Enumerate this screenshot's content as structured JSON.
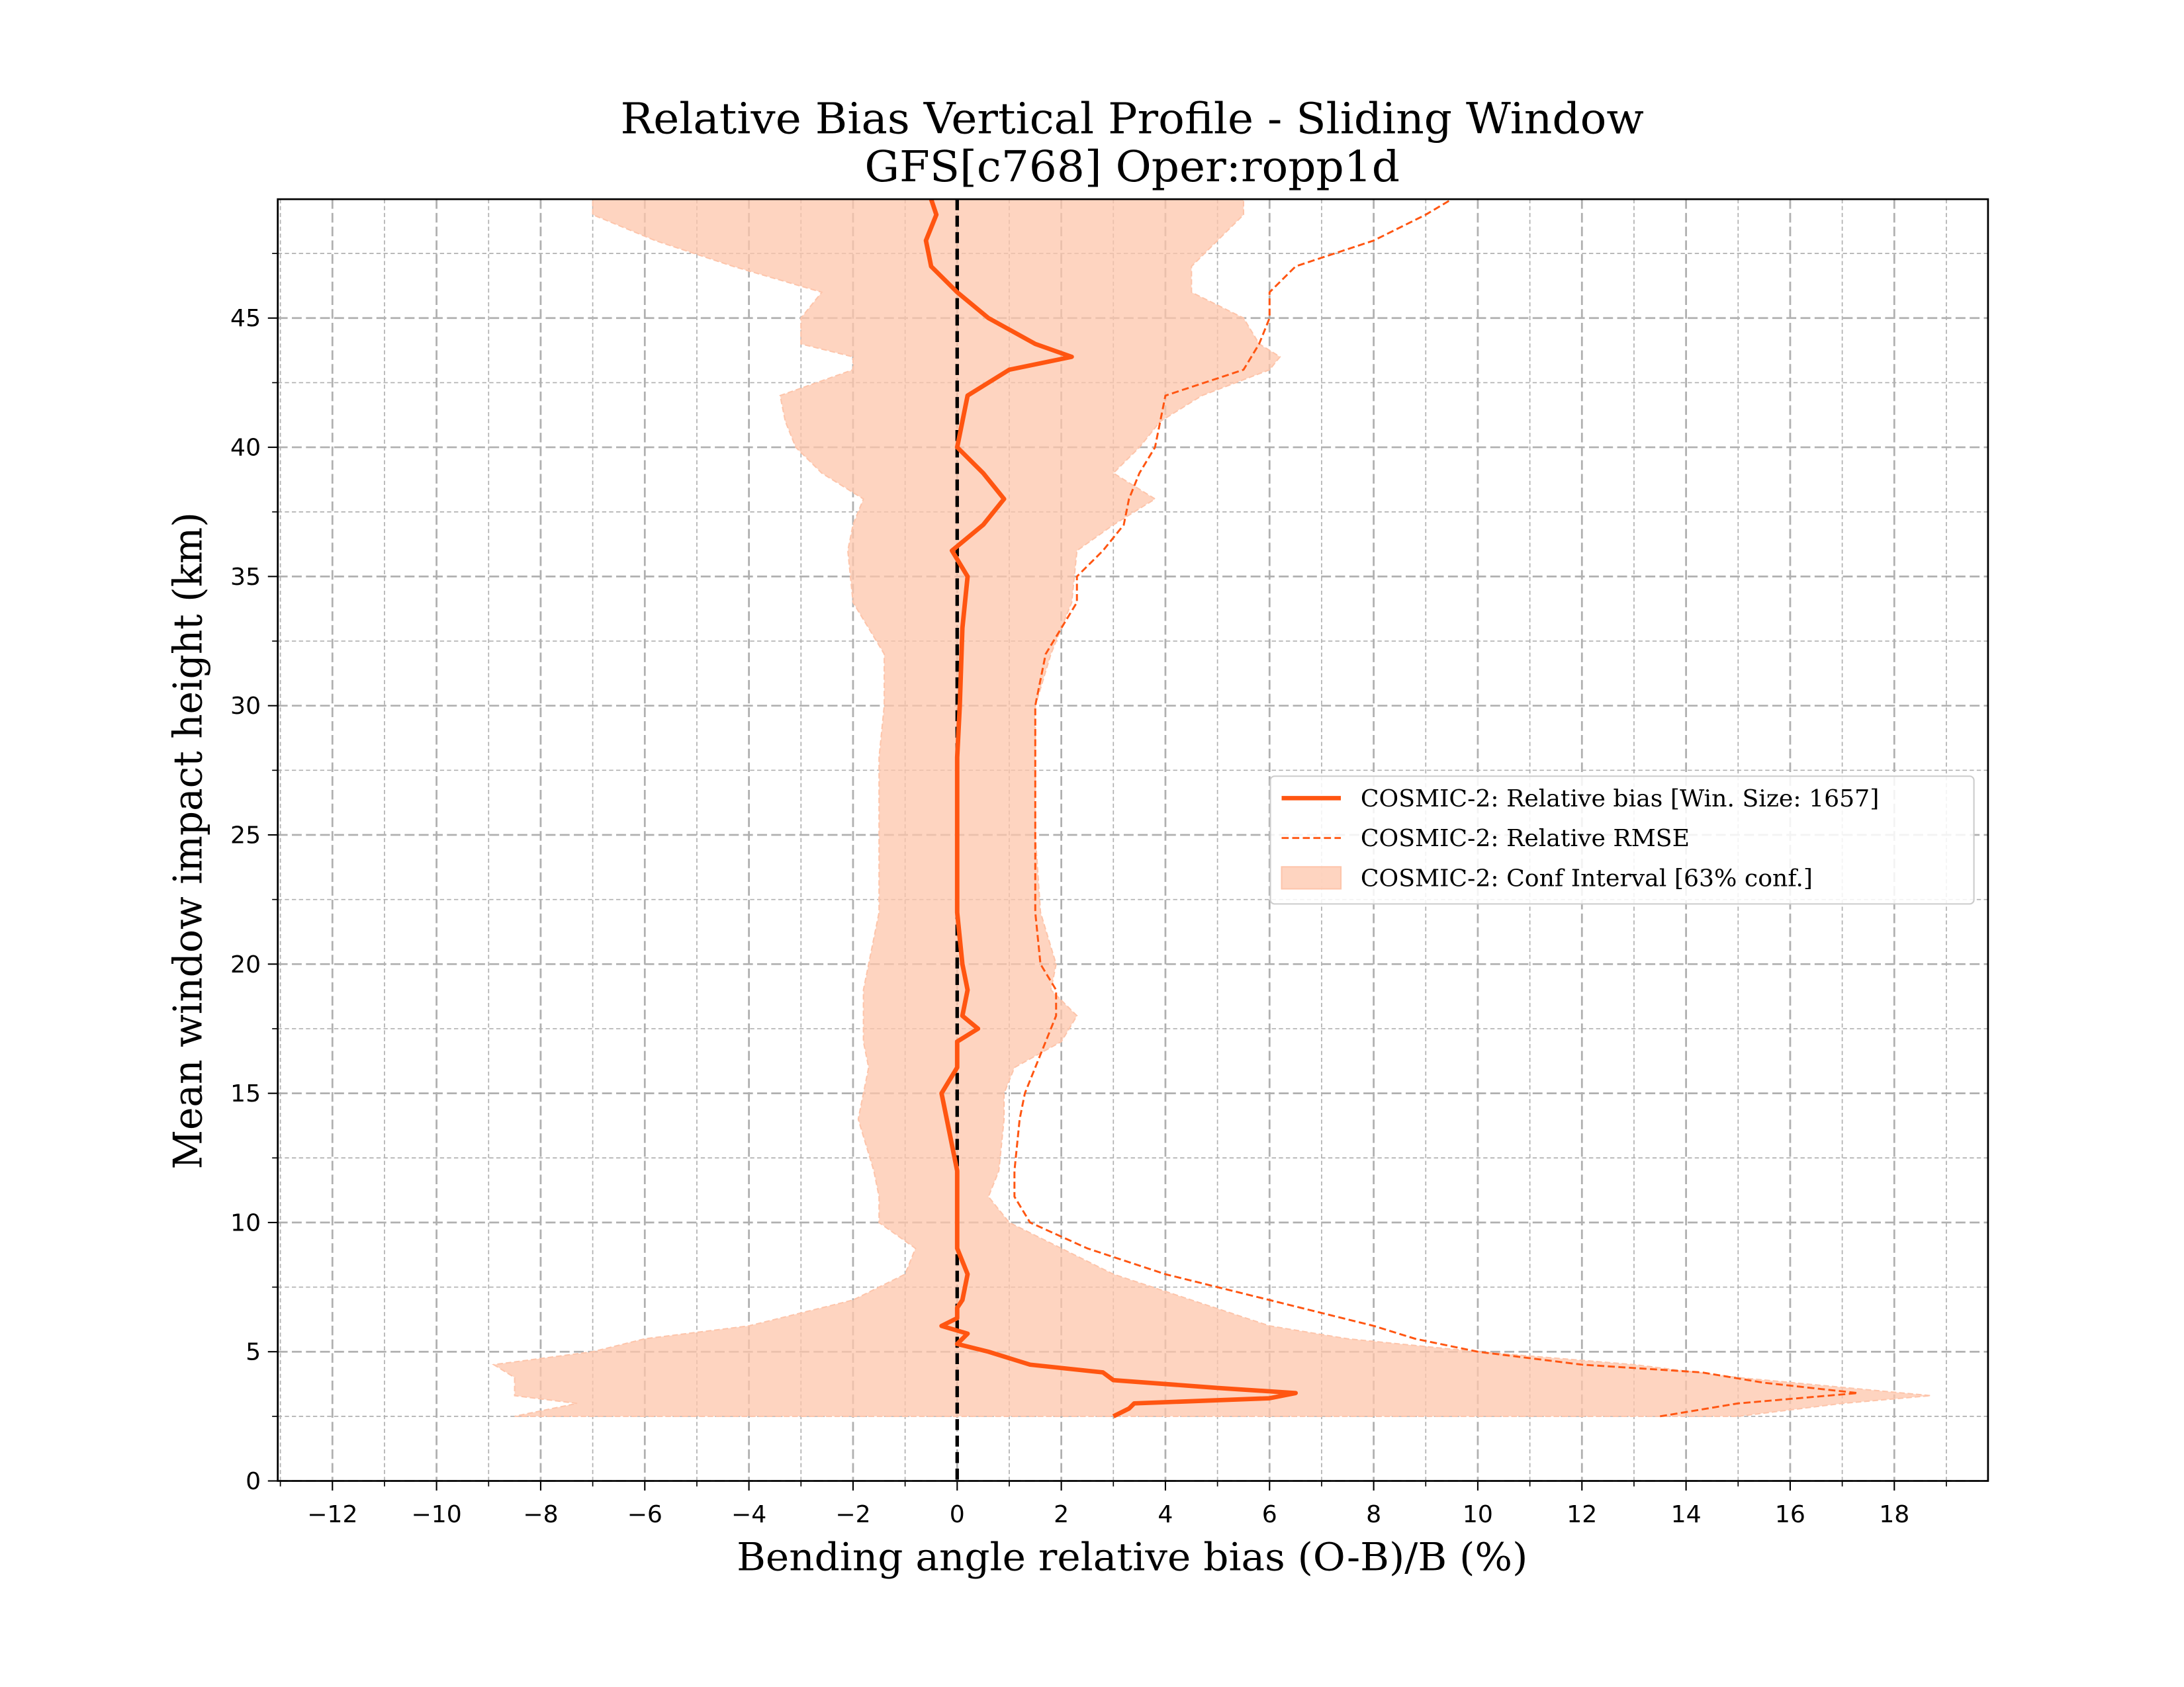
{
  "chart_data": {
    "type": "line",
    "title": "Relative Bias Vertical Profile - Sliding Window",
    "subtitle": "GFS[c768] Oper:ropp1d",
    "xlabel": "Bending angle relative bias (O-B)/B (%)",
    "ylabel": "Mean window impact height (km)",
    "xlim": [
      -13.05,
      19.8
    ],
    "ylim": [
      0,
      49.6
    ],
    "xticks": [
      {
        "value": -12,
        "label": "−12"
      },
      {
        "value": -10,
        "label": "−10"
      },
      {
        "value": -8,
        "label": "−8"
      },
      {
        "value": -6,
        "label": "−6"
      },
      {
        "value": -4,
        "label": "−4"
      },
      {
        "value": -2,
        "label": "−2"
      },
      0,
      2,
      4,
      6,
      8,
      10,
      12,
      14,
      16,
      18
    ],
    "yticks": [
      0,
      5,
      10,
      15,
      20,
      25,
      30,
      35,
      40,
      45
    ],
    "xminorticks": [
      -13,
      -11,
      -9,
      -7,
      -5,
      -3,
      -1,
      1,
      3,
      5,
      7,
      9,
      11,
      13,
      15,
      17,
      19
    ],
    "yminorticks": [
      2.5,
      7.5,
      12.5,
      17.5,
      22.5,
      27.5,
      32.5,
      37.5,
      42.5,
      47.5
    ],
    "grid": true,
    "legend": "center right",
    "reference_line": {
      "value": 0,
      "color": "#000000"
    },
    "series": [
      {
        "name": "COSMIC-2: Relative bias [Win. Size: 1657]",
        "color": "#ff5511",
        "style": "solid",
        "heights": [
          2.5,
          2.8,
          3.0,
          3.2,
          3.4,
          3.6,
          3.9,
          4.2,
          4.5,
          5.0,
          5.3,
          5.7,
          6.0,
          6.3,
          6.7,
          7,
          8,
          9,
          10,
          12,
          14,
          15,
          16,
          17,
          17.5,
          18,
          19,
          20,
          22,
          25,
          28,
          30,
          33,
          35,
          36,
          37,
          38,
          39,
          40,
          42,
          43,
          43.5,
          44,
          45,
          46,
          47,
          48,
          49,
          49.6
        ],
        "values": [
          3.0,
          3.3,
          3.4,
          6.0,
          6.5,
          5.0,
          3.0,
          2.8,
          1.4,
          0.6,
          0,
          0.2,
          -0.3,
          0,
          0,
          0.1,
          0.2,
          0,
          0,
          0,
          -0.2,
          -0.3,
          0,
          0,
          0.4,
          0.1,
          0.2,
          0.1,
          0,
          0,
          0,
          0.05,
          0.1,
          0.2,
          -0.1,
          0.5,
          0.9,
          0.5,
          0,
          0.2,
          1,
          2.2,
          1.5,
          0.6,
          0,
          -0.5,
          -0.6,
          -0.4,
          -0.5
        ]
      },
      {
        "name": "COSMIC-2: Relative RMSE",
        "color": "#ff5511",
        "style": "dashed",
        "heights": [
          2.5,
          3,
          3.4,
          3.8,
          4.2,
          4.5,
          5,
          5.5,
          6,
          6.5,
          7,
          7.5,
          8,
          9,
          10,
          11,
          12,
          14,
          15,
          17,
          18,
          19,
          20,
          22,
          25,
          28,
          30,
          32,
          34,
          35,
          36,
          37,
          38,
          39,
          40,
          42,
          43,
          44,
          45,
          46,
          47,
          48,
          49,
          49.6
        ],
        "values": [
          13.5,
          15,
          17.3,
          15.5,
          14.3,
          12,
          10,
          8.8,
          8,
          7,
          6,
          5,
          4,
          2.5,
          1.4,
          1.1,
          1.1,
          1.2,
          1.3,
          1.7,
          1.9,
          1.9,
          1.6,
          1.5,
          1.5,
          1.5,
          1.5,
          1.7,
          2.3,
          2.3,
          2.8,
          3.2,
          3.3,
          3.5,
          3.8,
          4,
          5.5,
          5.8,
          6.0,
          6,
          6.5,
          8,
          9,
          9.5
        ]
      }
    ],
    "band": {
      "name": "COSMIC-2: Conf Interval [63% conf.]",
      "color": "#fdc5ab",
      "heights": [
        2.5,
        3,
        3.3,
        4,
        4.5,
        5,
        5.5,
        6,
        7,
        8,
        9,
        10,
        11,
        12,
        14,
        15,
        16,
        17,
        18,
        19,
        20,
        22,
        25,
        28,
        30,
        32,
        34,
        36,
        37,
        38,
        39,
        40,
        41,
        42,
        43,
        43.5,
        44,
        45,
        46,
        47,
        48,
        49,
        49.6
      ],
      "lower": [
        -8.5,
        -7.3,
        -8.5,
        -8.5,
        -8.9,
        -7,
        -6,
        -4,
        -2,
        -1,
        -0.8,
        -1.5,
        -1.5,
        -1.6,
        -1.9,
        -1.8,
        -1.7,
        -1.8,
        -1.8,
        -1.8,
        -1.7,
        -1.5,
        -1.5,
        -1.5,
        -1.4,
        -1.4,
        -2.0,
        -2.1,
        -2.0,
        -1.8,
        -2.6,
        -3.1,
        -3.3,
        -3.4,
        -2.0,
        -2.0,
        -3.0,
        -3.0,
        -2.6,
        -4.3,
        -5.8,
        -7,
        -7
      ],
      "upper": [
        15,
        17,
        18.7,
        15,
        13,
        10,
        7.5,
        6,
        4.5,
        3,
        2,
        1,
        0.6,
        0.8,
        0.9,
        0.9,
        1.1,
        2.0,
        2.3,
        1.8,
        1.9,
        1.6,
        1.5,
        1.5,
        1.5,
        1.8,
        2.2,
        2.3,
        3.0,
        3.8,
        3.0,
        3.5,
        3.9,
        4.7,
        6.0,
        6.2,
        5.8,
        5.5,
        4.5,
        4.5,
        5.0,
        5.5,
        5.5
      ]
    }
  }
}
